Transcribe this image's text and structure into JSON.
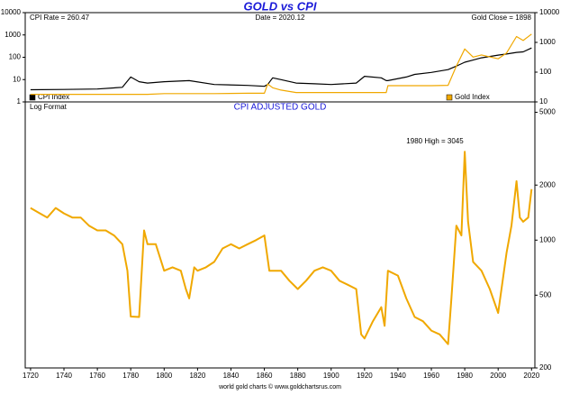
{
  "chart_data": [
    {
      "type": "line",
      "title": "GOLD vs CPI",
      "yscale": "log",
      "grid": false,
      "annotations": [
        "CPI Rate = 260.47",
        "Date = 2020.12",
        "Gold Close = 1898"
      ],
      "xlim": [
        1716.8,
        2022
      ],
      "x": [
        1720,
        1740,
        1760,
        1775,
        1780,
        1785,
        1790,
        1800,
        1815,
        1830,
        1850,
        1860,
        1862,
        1865,
        1870,
        1879,
        1890,
        1900,
        1915,
        1920,
        1930,
        1933,
        1934,
        1945,
        1950,
        1960,
        1970,
        1975,
        1980,
        1985,
        1990,
        2000,
        2005,
        2011,
        2015,
        2020
      ],
      "ylim": [
        1,
        10000
      ],
      "yticks": [
        1,
        10,
        100,
        1000,
        10000
      ],
      "y2lim": [
        10,
        10000
      ],
      "y2ticks": [
        10,
        100,
        1000,
        10000
      ],
      "series": [
        {
          "name": "CPI Index",
          "color": "#000000",
          "values": [
            3.5,
            3.6,
            3.8,
            4.5,
            13,
            8,
            7,
            8,
            9,
            6,
            5.5,
            5,
            6,
            12,
            10,
            7,
            6.5,
            6,
            7,
            14,
            12,
            9,
            9,
            13,
            17,
            21,
            28,
            40,
            60,
            75,
            95,
            125,
            140,
            165,
            175,
            260.47
          ]
        },
        {
          "name": "Gold Index",
          "color": "#f0a800",
          "axis": "y2",
          "values": [
            18,
            18,
            18,
            18,
            18,
            18,
            18,
            19,
            19,
            19,
            19.5,
            19.5,
            40,
            30,
            25,
            20.67,
            20.67,
            20.67,
            20.67,
            20.67,
            20.67,
            20.67,
            35,
            35,
            35,
            35,
            36,
            160,
            600,
            320,
            380,
            280,
            440,
            1570,
            1160,
            1898
          ]
        }
      ]
    },
    {
      "type": "line",
      "title": "CPI ADJUSTED GOLD",
      "yscale": "log",
      "grid": false,
      "annotations": [
        "Log Format",
        "1980 High = 3045"
      ],
      "source": "world gold charts © www.goldchartsrus.com",
      "xlim": [
        1716.8,
        2022
      ],
      "xticks": [
        1720,
        1740,
        1760,
        1780,
        1800,
        1820,
        1840,
        1860,
        1880,
        1900,
        1920,
        1940,
        1960,
        1980,
        2000,
        2020
      ],
      "ylim": [
        200,
        5700
      ],
      "yticks": [
        200,
        500,
        1000,
        2000,
        5000
      ],
      "x": [
        1720,
        1725,
        1730,
        1735,
        1740,
        1745,
        1750,
        1755,
        1760,
        1765,
        1770,
        1775,
        1778,
        1780,
        1785,
        1788,
        1790,
        1795,
        1800,
        1805,
        1810,
        1813,
        1815,
        1818,
        1820,
        1825,
        1830,
        1835,
        1840,
        1845,
        1850,
        1855,
        1860,
        1863,
        1865,
        1870,
        1875,
        1880,
        1885,
        1890,
        1895,
        1900,
        1905,
        1910,
        1915,
        1918,
        1920,
        1925,
        1930,
        1932,
        1934,
        1940,
        1945,
        1950,
        1955,
        1960,
        1965,
        1970,
        1972,
        1975,
        1978,
        1980,
        1982,
        1985,
        1990,
        1995,
        2000,
        2005,
        2008,
        2011,
        2013,
        2015,
        2018,
        2020
      ],
      "series": [
        {
          "color": "#f0a800",
          "values": [
            1500,
            1410,
            1330,
            1500,
            1400,
            1330,
            1330,
            1200,
            1130,
            1130,
            1060,
            950,
            680,
            382,
            380,
            1130,
            950,
            950,
            680,
            710,
            680,
            540,
            480,
            710,
            680,
            710,
            760,
            900,
            950,
            900,
            950,
            1000,
            1060,
            680,
            680,
            680,
            600,
            540,
            600,
            680,
            710,
            680,
            600,
            570,
            540,
            305,
            290,
            360,
            430,
            340,
            680,
            640,
            480,
            380,
            360,
            320,
            305,
            270,
            480,
            1200,
            1060,
            3045,
            1260,
            760,
            680,
            540,
            400,
            850,
            1200,
            2100,
            1330,
            1260,
            1330,
            1898
          ]
        }
      ]
    }
  ]
}
